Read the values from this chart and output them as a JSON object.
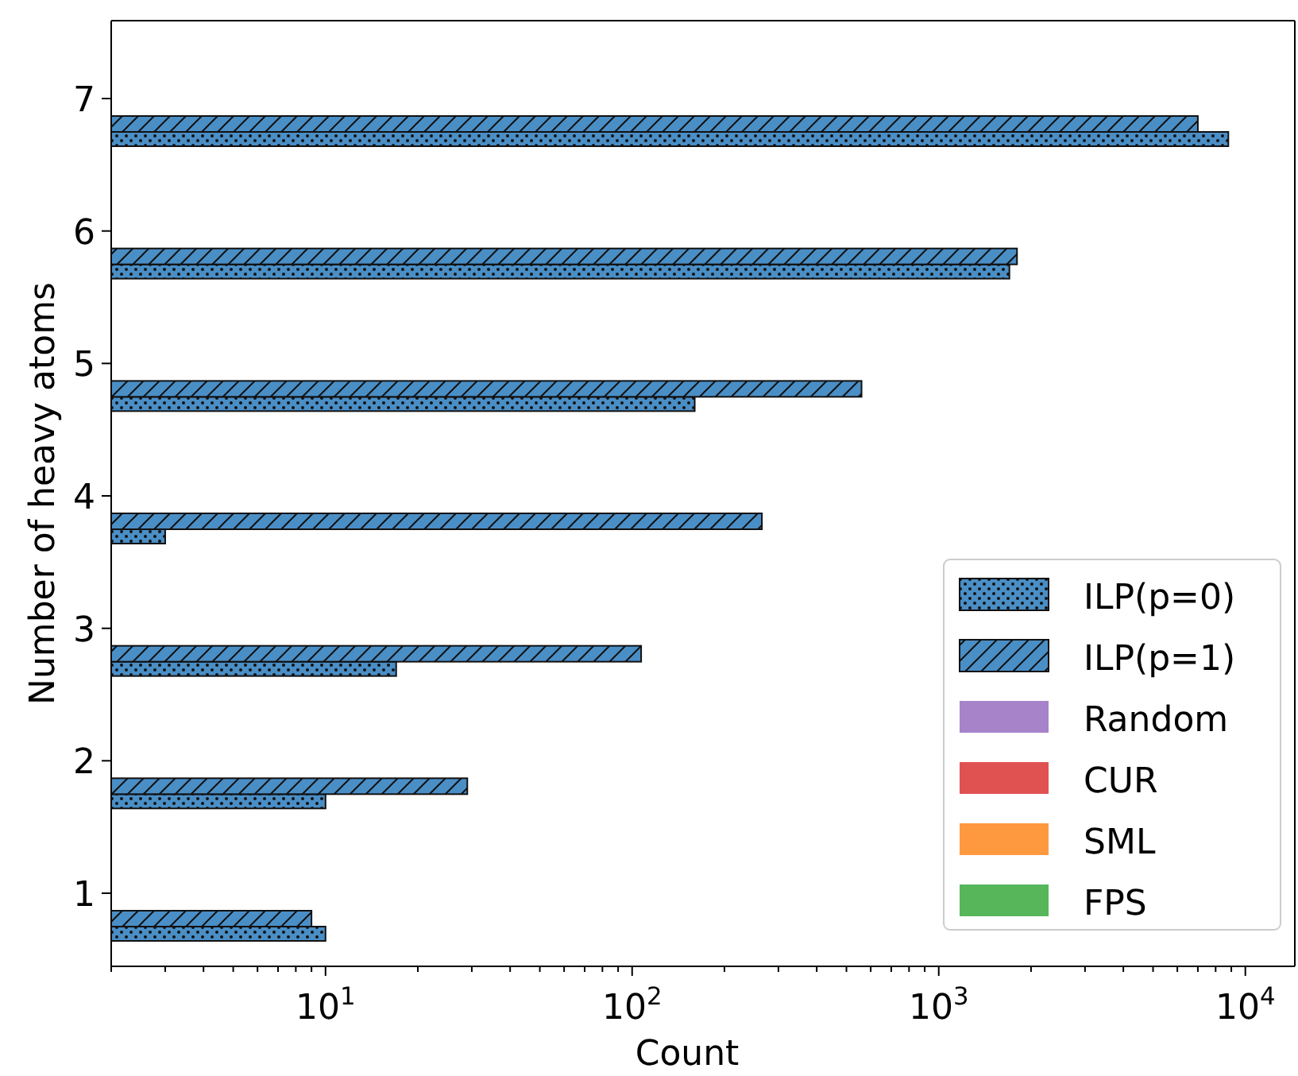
{
  "chart_data": {
    "type": "bar",
    "orientation": "horizontal",
    "xlabel": "Count",
    "ylabel": "Number of heavy atoms",
    "categories": [
      "7",
      "6",
      "5",
      "4",
      "3",
      "2",
      "1"
    ],
    "series": [
      {
        "name": "ILP(p=0)",
        "color": "#4a8ec6",
        "values": [
          8800,
          1700,
          160,
          3,
          17,
          10,
          10
        ]
      },
      {
        "name": "ILP(p=1)",
        "color": "#4a8ec6",
        "values": [
          7000,
          1800,
          560,
          265,
          107,
          29,
          9
        ]
      },
      {
        "name": "Random",
        "color": "#a783c9",
        "values": [
          null,
          null,
          null,
          null,
          null,
          null,
          null
        ]
      },
      {
        "name": "CUR",
        "color": "#e05252",
        "values": [
          null,
          null,
          null,
          null,
          null,
          null,
          null
        ]
      },
      {
        "name": "SML",
        "color": "#ff993f",
        "values": [
          null,
          null,
          null,
          null,
          null,
          null,
          null
        ]
      },
      {
        "name": "FPS",
        "color": "#57b65a",
        "values": [
          null,
          null,
          null,
          null,
          null,
          null,
          null
        ]
      }
    ],
    "log": "x",
    "xlim": [
      2,
      14500
    ],
    "xticks": [
      {
        "value": 2,
        "label": null
      },
      {
        "value": 3,
        "label": null
      },
      {
        "value": 4,
        "label": null
      },
      {
        "value": 5,
        "label": null
      },
      {
        "value": 6,
        "label": null
      },
      {
        "value": 7,
        "label": null
      },
      {
        "value": 8,
        "label": null
      },
      {
        "value": 9,
        "label": null
      },
      {
        "value": 10,
        "label": "10$^{1}$"
      },
      {
        "value": 20,
        "label": null
      },
      {
        "value": 30,
        "label": null
      },
      {
        "value": 40,
        "label": null
      },
      {
        "value": 50,
        "label": null
      },
      {
        "value": 60,
        "label": null
      },
      {
        "value": 70,
        "label": null
      },
      {
        "value": 80,
        "label": null
      },
      {
        "value": 90,
        "label": null
      },
      {
        "value": 100,
        "label": "10$^{2}$"
      },
      {
        "value": 200,
        "label": null
      },
      {
        "value": 300,
        "label": null
      },
      {
        "value": 400,
        "label": null
      },
      {
        "value": 500,
        "label": null
      },
      {
        "value": 600,
        "label": null
      },
      {
        "value": 700,
        "label": null
      },
      {
        "value": 800,
        "label": null
      },
      {
        "value": 900,
        "label": null
      },
      {
        "value": 1000,
        "label": "10$^{3}$"
      },
      {
        "value": 2000,
        "label": null
      },
      {
        "value": 3000,
        "label": null
      },
      {
        "value": 4000,
        "label": null
      },
      {
        "value": 5000,
        "label": null
      },
      {
        "value": 6000,
        "label": null
      },
      {
        "value": 7000,
        "label": null
      },
      {
        "value": 8000,
        "label": null
      },
      {
        "value": 9000,
        "label": null
      },
      {
        "value": 10000,
        "label": "10$^{4}$"
      }
    ],
    "grid": false,
    "legend": "bottom right"
  }
}
